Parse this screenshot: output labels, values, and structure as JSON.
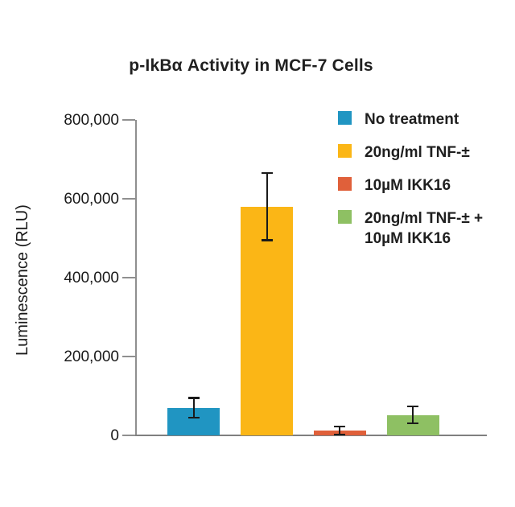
{
  "title": "p-IkBα Activity in MCF-7 Cells",
  "ylabel": "Luminescence (RLU)",
  "chart_data": {
    "type": "bar",
    "title": "p-IkBα Activity in MCF-7 Cells",
    "xlabel": "",
    "ylabel": "Luminescence (RLU)",
    "ylim": [
      0,
      800000
    ],
    "yticks": [
      0,
      200000,
      400000,
      600000,
      800000
    ],
    "ytick_labels": [
      "0",
      "200,000",
      "400,000",
      "600,000",
      "800,000"
    ],
    "grid": false,
    "background": "#ffffff",
    "axis_color": "#8f8f8f",
    "error_bar_color": "#1a1a1a",
    "legend_position": "upper right",
    "categories": [
      "No treatment",
      "20ng/ml TNF-±",
      "10µM IKK16",
      "20ng/ml TNF-± + 10µM IKK16"
    ],
    "values": [
      70000,
      580000,
      12000,
      52000
    ],
    "errors": [
      25000,
      85000,
      10000,
      22000
    ],
    "colors": [
      "#2095C2",
      "#FBB616",
      "#E0603A",
      "#8EC063"
    ],
    "legend": [
      {
        "lines": [
          "No treatment"
        ],
        "color": "#2095C2"
      },
      {
        "lines": [
          "20ng/ml TNF-±"
        ],
        "color": "#FBB616"
      },
      {
        "lines": [
          "10µM IKK16"
        ],
        "color": "#E0603A"
      },
      {
        "lines": [
          "20ng/ml TNF-± +",
          "10µM IKK16"
        ],
        "color": "#8EC063"
      }
    ]
  }
}
